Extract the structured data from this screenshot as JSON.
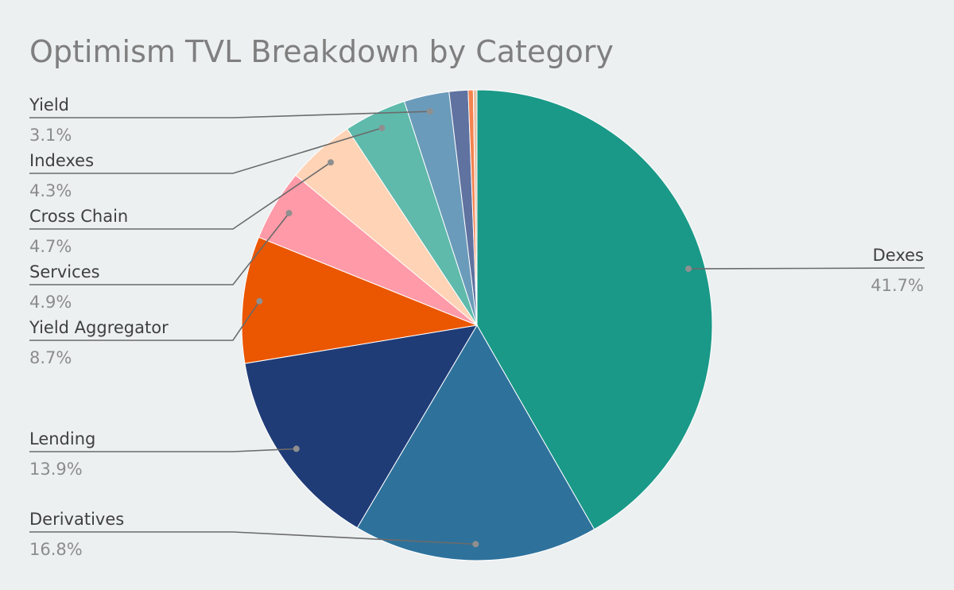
{
  "chart_data": {
    "type": "pie",
    "title": "Optimism TVL Breakdown by Category",
    "slices": [
      {
        "label": "Dexes",
        "value": 41.7,
        "pct_label": "41.7%",
        "color": "#1a9988"
      },
      {
        "label": "Derivatives",
        "value": 16.8,
        "pct_label": "16.8%",
        "color": "#2e729c"
      },
      {
        "label": "Lending",
        "value": 13.9,
        "pct_label": "13.9%",
        "color": "#1f3c77"
      },
      {
        "label": "Yield Aggregator",
        "value": 8.7,
        "pct_label": "8.7%",
        "color": "#eb5600"
      },
      {
        "label": "Services",
        "value": 4.9,
        "pct_label": "4.9%",
        "color": "#ff9aa8"
      },
      {
        "label": "Cross Chain",
        "value": 4.7,
        "pct_label": "4.7%",
        "color": "#ffd3b6"
      },
      {
        "label": "Indexes",
        "value": 4.3,
        "pct_label": "4.3%",
        "color": "#5fbaab"
      },
      {
        "label": "Yield",
        "value": 3.1,
        "pct_label": "3.1%",
        "color": "#6b9bba"
      },
      {
        "label": "",
        "value": 1.3,
        "pct_label": "",
        "color": "#5f72a0"
      },
      {
        "label": "",
        "value": 0.35,
        "pct_label": "",
        "color": "#f4834f"
      },
      {
        "label": "",
        "value": 0.25,
        "pct_label": "",
        "color": "#e8bfa6"
      }
    ],
    "legend": "callout labels with leader lines"
  }
}
